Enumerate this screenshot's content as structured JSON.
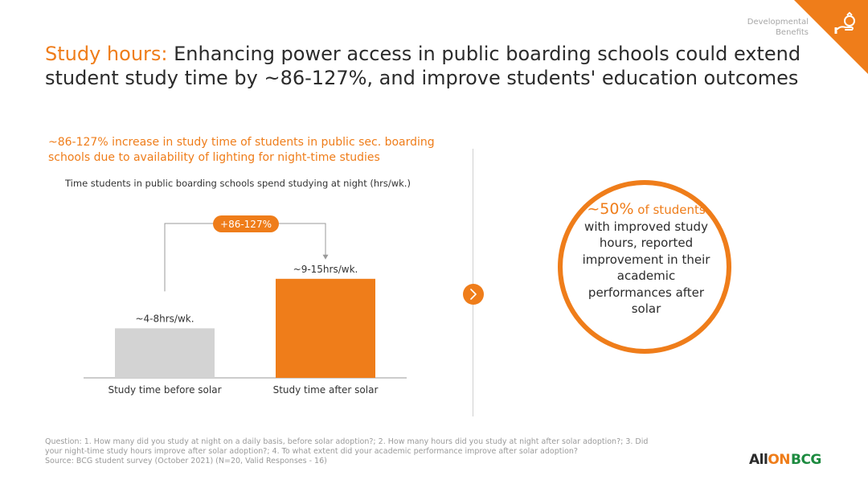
{
  "corner": {
    "section_label": "Developmental\nBenefits",
    "icon": "hand-money-bag-icon"
  },
  "title": {
    "accent": "Study hours:",
    "rest": " Enhancing power access in public boarding schools could extend student study time by ~86-127%, and improve students' education outcomes"
  },
  "subtitle": "~86-127% increase in study time of students in public sec. boarding schools due to availability of lighting for night-time studies",
  "chart_data": {
    "type": "bar",
    "title": "Time students in public boarding schools spend studying at night (hrs/wk.)",
    "categories": [
      "Study time before solar",
      "Study time after solar"
    ],
    "ranges": [
      [
        4,
        8
      ],
      [
        9,
        15
      ]
    ],
    "values": [
      6,
      12
    ],
    "data_labels": [
      "~4-8hrs/wk.",
      "~9-15hrs/wk."
    ],
    "colors": [
      "#d3d3d3",
      "#ef7d1a"
    ],
    "change_label": "+86-127%",
    "ylim": [
      0,
      15
    ]
  },
  "callout": {
    "big": "~50%",
    "highlight": " of students",
    "rest": "with improved study hours, reported improvement in their academic performances after solar"
  },
  "footnote": {
    "line1": "Question: 1. How many   did you study at night on a daily basis, before solar adoption?; 2. How many hours did you study at night after solar adoption?; 3. Did",
    "line2": "your night-time study hours improve after solar adoption?; 4. To what extent did your academic performance improve after solar adoption?",
    "line3": "Source: BCG student survey (October 2021) (N=20, Valid Responses - 16)"
  },
  "logos": {
    "allon_prefix": "All",
    "allon_suffix": "ON",
    "bcg": "BCG"
  },
  "colors": {
    "accent": "#ef7d1a",
    "bcg_green": "#1c8a3f",
    "bar_before": "#d3d3d3"
  }
}
